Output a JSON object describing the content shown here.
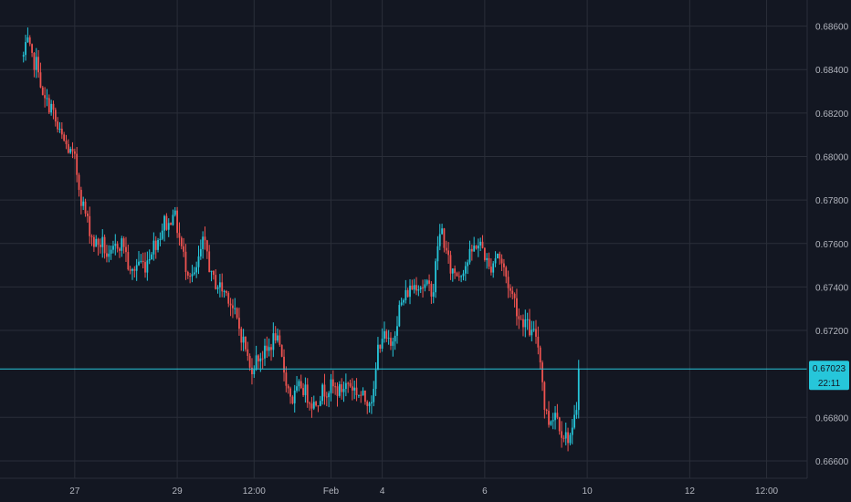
{
  "colors": {
    "background": "#131722",
    "grid": "#2a2e39",
    "text": "#b2b5be",
    "up": "#26c6da",
    "down": "#ef5350",
    "price_line": "#26c6da",
    "price_tag": "#26c6da"
  },
  "chart_data": {
    "type": "candlestick",
    "title": "",
    "grid": true,
    "y_axis": {
      "position": "right",
      "range": [
        0.6652,
        0.6872
      ],
      "ticks": [
        "0.68600",
        "0.68400",
        "0.68200",
        "0.68000",
        "0.67800",
        "0.67600",
        "0.67400",
        "0.67200",
        "0.66800",
        "0.66600"
      ]
    },
    "x_axis": {
      "range": [
        -11,
        367
      ],
      "ticks": [
        {
          "label": "27",
          "x": 24
        },
        {
          "label": "29",
          "x": 72
        },
        {
          "label": "12:00",
          "x": 108
        },
        {
          "label": "Feb",
          "x": 144
        },
        {
          "label": "4",
          "x": 168
        },
        {
          "label": "6",
          "x": 216
        },
        {
          "label": "10",
          "x": 264
        },
        {
          "label": "12",
          "x": 312
        },
        {
          "label": "12:00",
          "x": 348
        }
      ]
    },
    "last_price": {
      "value": "0.67023",
      "countdown": "22:11",
      "level": 0.67023
    },
    "anchors": [
      [
        0,
        0.6846
      ],
      [
        2,
        0.6852
      ],
      [
        4,
        0.6844
      ],
      [
        7,
        0.6842
      ],
      [
        9,
        0.6826
      ],
      [
        13,
        0.6823
      ],
      [
        16,
        0.6812
      ],
      [
        20,
        0.6805
      ],
      [
        24,
        0.6798
      ],
      [
        27,
        0.6781
      ],
      [
        30,
        0.677
      ],
      [
        33,
        0.676
      ],
      [
        37,
        0.676
      ],
      [
        40,
        0.6752
      ],
      [
        44,
        0.676
      ],
      [
        47,
        0.676
      ],
      [
        50,
        0.6745
      ],
      [
        54,
        0.6752
      ],
      [
        57,
        0.675
      ],
      [
        60,
        0.6758
      ],
      [
        63,
        0.6762
      ],
      [
        66,
        0.677
      ],
      [
        68,
        0.6768
      ],
      [
        70,
        0.6776
      ],
      [
        74,
        0.6758
      ],
      [
        76,
        0.675
      ],
      [
        80,
        0.6744
      ],
      [
        84,
        0.676
      ],
      [
        86,
        0.6756
      ],
      [
        88,
        0.6744
      ],
      [
        92,
        0.674
      ],
      [
        96,
        0.6736
      ],
      [
        100,
        0.6724
      ],
      [
        104,
        0.6712
      ],
      [
        106,
        0.6702
      ],
      [
        110,
        0.6708
      ],
      [
        114,
        0.671
      ],
      [
        118,
        0.6718
      ],
      [
        121,
        0.6706
      ],
      [
        124,
        0.6693
      ],
      [
        126,
        0.6688
      ],
      [
        130,
        0.6695
      ],
      [
        133,
        0.669
      ],
      [
        136,
        0.6686
      ],
      [
        140,
        0.6692
      ],
      [
        144,
        0.6694
      ],
      [
        148,
        0.6692
      ],
      [
        152,
        0.6696
      ],
      [
        156,
        0.6692
      ],
      [
        160,
        0.6688
      ],
      [
        164,
        0.669
      ],
      [
        166,
        0.6712
      ],
      [
        168,
        0.6718
      ],
      [
        172,
        0.6712
      ],
      [
        176,
        0.673
      ],
      [
        180,
        0.6738
      ],
      [
        184,
        0.6742
      ],
      [
        188,
        0.674
      ],
      [
        192,
        0.6739
      ],
      [
        194,
        0.676
      ],
      [
        196,
        0.6766
      ],
      [
        198,
        0.6755
      ],
      [
        200,
        0.6748
      ],
      [
        204,
        0.6746
      ],
      [
        208,
        0.6752
      ],
      [
        212,
        0.676
      ],
      [
        215,
        0.6758
      ],
      [
        218,
        0.6748
      ],
      [
        222,
        0.6756
      ],
      [
        225,
        0.6748
      ],
      [
        228,
        0.6738
      ],
      [
        230,
        0.6734
      ],
      [
        232,
        0.6726
      ],
      [
        235,
        0.6724
      ],
      [
        238,
        0.6718
      ],
      [
        240,
        0.6718
      ],
      [
        242,
        0.6708
      ],
      [
        244,
        0.6685
      ],
      [
        246,
        0.6678
      ],
      [
        249,
        0.6683
      ],
      [
        252,
        0.6674
      ],
      [
        254,
        0.6671
      ],
      [
        257,
        0.6672
      ],
      [
        259,
        0.6685
      ],
      [
        260,
        0.6702
      ]
    ]
  }
}
